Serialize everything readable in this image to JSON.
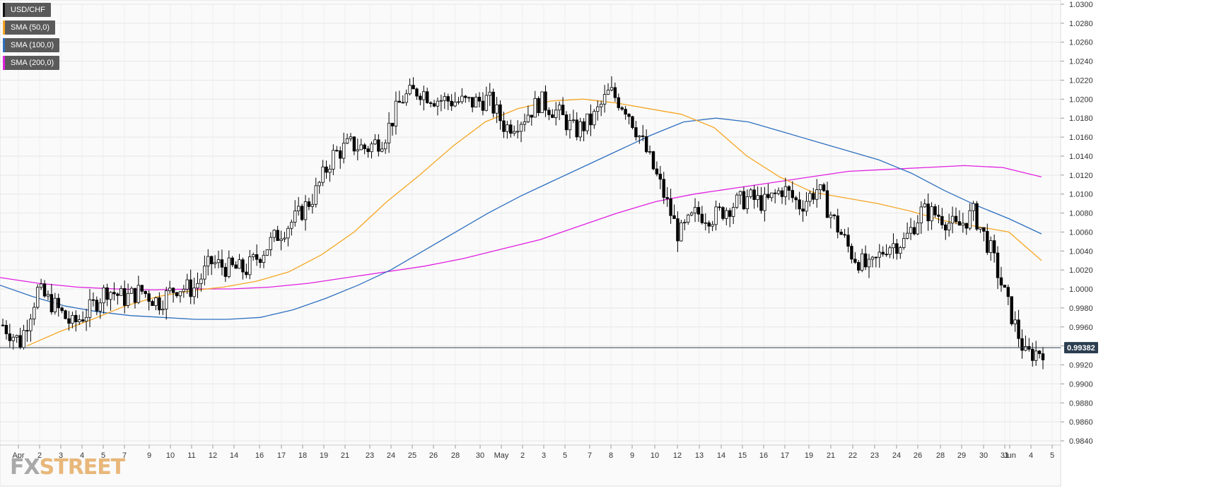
{
  "chart_data": {
    "type": "candlestick",
    "symbol": "USD/CHF",
    "ylim": [
      0.984,
      1.03
    ],
    "y_ticks": [
      "1.0300",
      "1.0280",
      "1.0260",
      "1.0240",
      "1.0220",
      "1.0200",
      "1.0180",
      "1.0160",
      "1.0140",
      "1.0120",
      "1.0100",
      "1.0080",
      "1.0060",
      "1.0040",
      "1.0020",
      "1.0000",
      "0.9980",
      "0.9960",
      "0.9940",
      "0.9920",
      "0.9900",
      "0.9880",
      "0.9860",
      "0.9840"
    ],
    "x_ticks": [
      "Apr",
      "2",
      "3",
      "4",
      "5",
      "7",
      "9",
      "10",
      "11",
      "12",
      "14",
      "16",
      "17",
      "18",
      "19",
      "21",
      "23",
      "24",
      "25",
      "26",
      "28",
      "30",
      "May",
      "2",
      "3",
      "5",
      "7",
      "8",
      "9",
      "10",
      "12",
      "13",
      "14",
      "15",
      "16",
      "17",
      "19",
      "21",
      "22",
      "23",
      "24",
      "26",
      "28",
      "29",
      "30",
      "31",
      "Jun",
      "4",
      "5"
    ],
    "current_price": 0.99382,
    "current_price_label": "0.99382",
    "grid": true,
    "legend_position": "top-left",
    "series": [
      {
        "name": "USD/CHF",
        "color": "#000000"
      },
      {
        "name": "SMA (50,0)",
        "color": "#f5a623"
      },
      {
        "name": "SMA (100,0)",
        "color": "#2e6fc0"
      },
      {
        "name": "SMA (200,0)",
        "color": "#e020e0"
      }
    ],
    "close_path": [
      0.9962,
      0.9944,
      0.9998,
      0.9982,
      0.9962,
      0.9978,
      1.0,
      0.999,
      0.9998,
      0.9986,
      1.0002,
      1.0,
      1.0028,
      1.0022,
      1.002,
      1.004,
      1.006,
      1.0076,
      1.01,
      1.014,
      1.0152,
      1.0148,
      1.016,
      1.02,
      1.021,
      1.02,
      1.0198,
      1.0196,
      1.02,
      1.017,
      1.018,
      1.0198,
      1.0186,
      1.0166,
      1.0178,
      1.0208,
      1.019,
      1.015,
      1.0106,
      1.0056,
      1.008,
      1.0076,
      1.0088,
      1.0096,
      1.009,
      1.0106,
      1.0088,
      1.0106,
      1.007,
      1.0036,
      1.002,
      1.0046,
      1.005,
      1.0082,
      1.0078,
      1.0064,
      1.008,
      1.004,
      0.9982,
      0.993,
      0.9936
    ]
  },
  "sma50": [
    0.994,
    0.9955,
    0.9968,
    0.9982,
    0.9992,
    0.9998,
    1.0002,
    1.0008,
    1.0018,
    1.0036,
    1.006,
    1.0092,
    1.012,
    1.015,
    1.0176,
    1.019,
    1.0198,
    1.02,
    1.0196,
    1.019,
    1.0184,
    1.017,
    1.014,
    1.0118,
    1.0102,
    1.0096,
    1.009,
    1.0082,
    1.0072,
    1.0066,
    1.006,
    1.003
  ],
  "sma100": [
    1.0004,
    0.9992,
    0.9982,
    0.9976,
    0.9972,
    0.997,
    0.9968,
    0.9968,
    0.997,
    0.9978,
    0.999,
    1.0004,
    1.002,
    1.004,
    1.006,
    1.008,
    1.0098,
    1.0114,
    1.013,
    1.0146,
    1.0162,
    1.0176,
    1.018,
    1.0176,
    1.0166,
    1.0156,
    1.0146,
    1.0136,
    1.0122,
    1.0104,
    1.0088,
    1.0074,
    1.0058
  ],
  "sma200": [
    1.0012,
    1.0006,
    1.0002,
    1.0,
    0.9999,
    1.0,
    1.0,
    1.0002,
    1.0006,
    1.0012,
    1.0018,
    1.0024,
    1.0032,
    1.0042,
    1.0052,
    1.0066,
    1.008,
    1.0092,
    1.01,
    1.0106,
    1.0112,
    1.0118,
    1.0124,
    1.0126,
    1.0128,
    1.013,
    1.0128,
    1.0118
  ],
  "logo": {
    "fx": "FX",
    "street": "STREET"
  }
}
